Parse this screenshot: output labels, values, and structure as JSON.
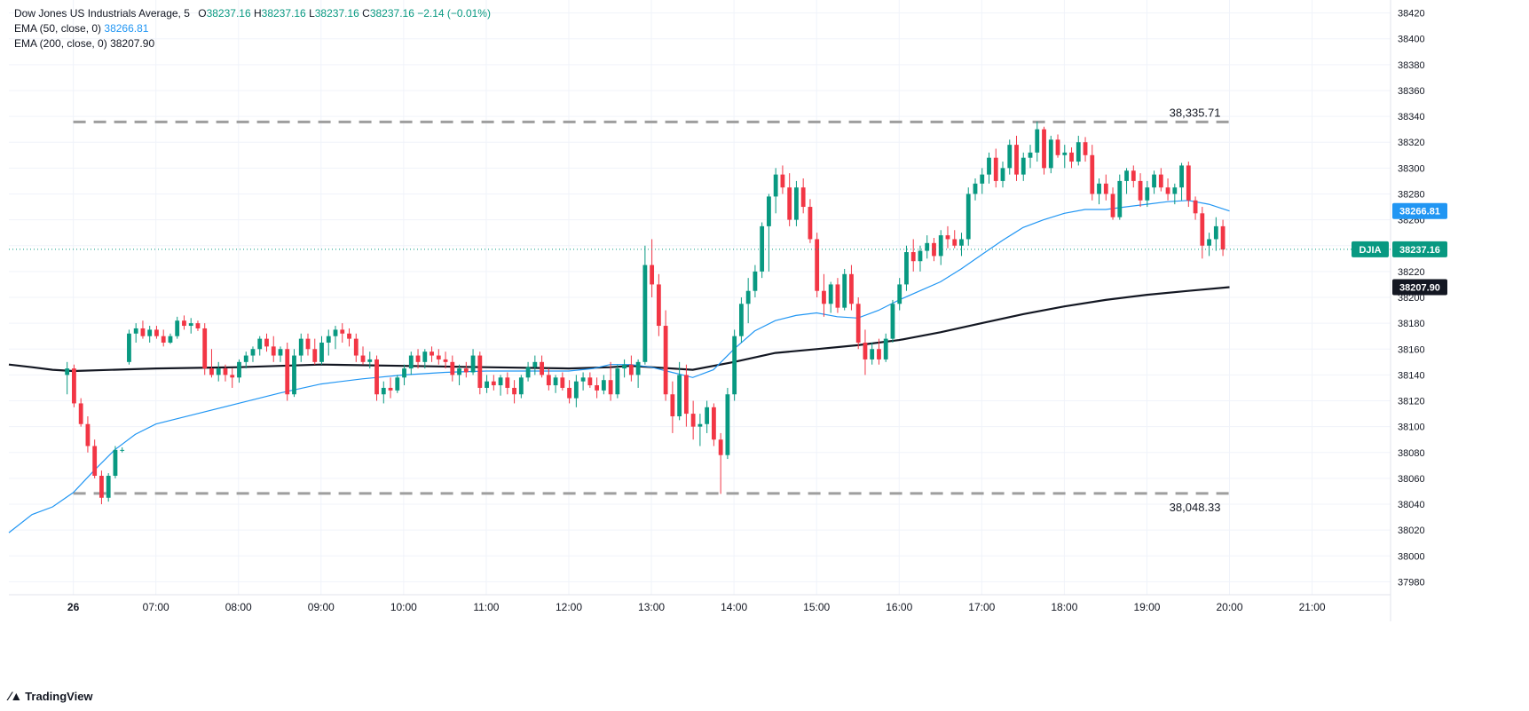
{
  "legend": {
    "symbol": "Dow Jones US Industrials Average, 5",
    "o_label": "O",
    "o_value": "38237.16",
    "h_label": "H",
    "h_value": "38237.16",
    "l_label": "L",
    "l_value": "38237.16",
    "c_label": "C",
    "c_value": "38237.16",
    "change": "−2.14 (−0.01%)",
    "ema50_label": "EMA (50, close, 0)",
    "ema50_value": "38266.81",
    "ema200_label": "EMA (200, close, 0)",
    "ema200_value": "38207.90"
  },
  "branding": {
    "text": "TradingView"
  },
  "colors": {
    "up": "#089981",
    "down": "#f23645",
    "ema50": "#2196f3",
    "ema200": "#131722",
    "dashed": "#9e9e9e"
  },
  "chart_data": {
    "type": "candlestick",
    "y_ticks": [
      37980,
      38000,
      38020,
      38040,
      38060,
      38080,
      38100,
      38120,
      38140,
      38160,
      38180,
      38200,
      38220,
      38240,
      38260,
      38280,
      38300,
      38320,
      38340,
      38360,
      38380,
      38400,
      38420
    ],
    "y_range": [
      37970,
      38430
    ],
    "x_ticks": [
      "26",
      "07:00",
      "08:00",
      "09:00",
      "10:00",
      "11:00",
      "12:00",
      "13:00",
      "14:00",
      "15:00",
      "16:00",
      "17:00",
      "18:00",
      "19:00",
      "20:00",
      "21:00"
    ],
    "x_tick_hours": [
      6.0,
      7,
      8,
      9,
      10,
      11,
      12,
      13,
      14,
      15,
      16,
      17,
      18,
      19,
      20,
      21
    ],
    "x_range_hours": [
      5.22,
      21.95
    ],
    "candle_width_hours": 0.0833,
    "last_candle_hour": 19.92,
    "candles_ohlc": [
      [
        38140,
        38150,
        38125,
        38145
      ],
      [
        38145,
        38148,
        38115,
        38118
      ],
      [
        38118,
        38122,
        38100,
        38102
      ],
      [
        38102,
        38108,
        38080,
        38085
      ],
      [
        38085,
        38090,
        38060,
        38062
      ],
      [
        38062,
        38066,
        38040,
        38045
      ],
      [
        38045,
        38064,
        38042,
        38062
      ],
      [
        38062,
        38085,
        38060,
        38082
      ],
      [
        38082,
        38084,
        38080,
        38082
      ],
      [
        38150,
        38175,
        38148,
        38172
      ],
      [
        38172,
        38180,
        38165,
        38176
      ],
      [
        38176,
        38182,
        38168,
        38170
      ],
      [
        38170,
        38178,
        38165,
        38175
      ],
      [
        38175,
        38178,
        38168,
        38170
      ],
      [
        38170,
        38175,
        38162,
        38165
      ],
      [
        38165,
        38172,
        38164,
        38170
      ],
      [
        38170,
        38185,
        38168,
        38182
      ],
      [
        38182,
        38186,
        38175,
        38178
      ],
      [
        38178,
        38184,
        38172,
        38180
      ],
      [
        38180,
        38182,
        38174,
        38176
      ],
      [
        38176,
        38180,
        38140,
        38145
      ],
      [
        38145,
        38160,
        38138,
        38140
      ],
      [
        38140,
        38150,
        38135,
        38145
      ],
      [
        38145,
        38148,
        38135,
        38140
      ],
      [
        38140,
        38145,
        38130,
        38138
      ],
      [
        38138,
        38152,
        38134,
        38150
      ],
      [
        38150,
        38158,
        38145,
        38155
      ],
      [
        38155,
        38162,
        38150,
        38160
      ],
      [
        38160,
        38170,
        38155,
        38168
      ],
      [
        38168,
        38172,
        38158,
        38162
      ],
      [
        38162,
        38170,
        38150,
        38155
      ],
      [
        38155,
        38162,
        38150,
        38160
      ],
      [
        38160,
        38165,
        38120,
        38125
      ],
      [
        38125,
        38160,
        38123,
        38155
      ],
      [
        38155,
        38172,
        38150,
        38168
      ],
      [
        38168,
        38172,
        38155,
        38160
      ],
      [
        38160,
        38168,
        38148,
        38150
      ],
      [
        38150,
        38170,
        38148,
        38165
      ],
      [
        38165,
        38175,
        38155,
        38170
      ],
      [
        38170,
        38178,
        38160,
        38175
      ],
      [
        38175,
        38180,
        38165,
        38172
      ],
      [
        38172,
        38176,
        38162,
        38168
      ],
      [
        38168,
        38172,
        38150,
        38155
      ],
      [
        38155,
        38162,
        38148,
        38150
      ],
      [
        38150,
        38158,
        38145,
        38152
      ],
      [
        38152,
        38155,
        38120,
        38125
      ],
      [
        38125,
        38135,
        38118,
        38130
      ],
      [
        38130,
        38138,
        38122,
        38128
      ],
      [
        38128,
        38140,
        38126,
        38138
      ],
      [
        38138,
        38148,
        38132,
        38145
      ],
      [
        38145,
        38158,
        38140,
        38155
      ],
      [
        38155,
        38160,
        38145,
        38150
      ],
      [
        38150,
        38160,
        38145,
        38158
      ],
      [
        38158,
        38162,
        38150,
        38155
      ],
      [
        38155,
        38160,
        38148,
        38152
      ],
      [
        38152,
        38158,
        38145,
        38150
      ],
      [
        38150,
        38155,
        38135,
        38140
      ],
      [
        38140,
        38148,
        38132,
        38145
      ],
      [
        38145,
        38150,
        38138,
        38142
      ],
      [
        38142,
        38160,
        38140,
        38155
      ],
      [
        38155,
        38158,
        38125,
        38130
      ],
      [
        38130,
        38140,
        38126,
        38135
      ],
      [
        38135,
        38140,
        38128,
        38132
      ],
      [
        38132,
        38140,
        38124,
        38138
      ],
      [
        38138,
        38142,
        38125,
        38130
      ],
      [
        38130,
        38136,
        38118,
        38125
      ],
      [
        38125,
        38140,
        38122,
        38138
      ],
      [
        38138,
        38150,
        38135,
        38146
      ],
      [
        38146,
        38155,
        38140,
        38150
      ],
      [
        38150,
        38155,
        38138,
        38140
      ],
      [
        38140,
        38145,
        38128,
        38132
      ],
      [
        38132,
        38140,
        38126,
        38138
      ],
      [
        38138,
        38142,
        38128,
        38130
      ],
      [
        38130,
        38136,
        38118,
        38122
      ],
      [
        38122,
        38140,
        38115,
        38135
      ],
      [
        38135,
        38142,
        38128,
        38138
      ],
      [
        38138,
        38142,
        38130,
        38132
      ],
      [
        38132,
        38138,
        38122,
        38128
      ],
      [
        38128,
        38140,
        38125,
        38136
      ],
      [
        38136,
        38150,
        38120,
        38125
      ],
      [
        38125,
        38148,
        38122,
        38145
      ],
      [
        38145,
        38152,
        38138,
        38148
      ],
      [
        38148,
        38155,
        38135,
        38140
      ],
      [
        38140,
        38152,
        38130,
        38150
      ],
      [
        38150,
        38240,
        38148,
        38225
      ],
      [
        38225,
        38245,
        38200,
        38210
      ],
      [
        38210,
        38218,
        38170,
        38178
      ],
      [
        38178,
        38190,
        38120,
        38125
      ],
      [
        38125,
        38135,
        38095,
        38108
      ],
      [
        38108,
        38150,
        38105,
        38140
      ],
      [
        38140,
        38148,
        38100,
        38110
      ],
      [
        38110,
        38120,
        38090,
        38100
      ],
      [
        38100,
        38110,
        38085,
        38102
      ],
      [
        38102,
        38120,
        38095,
        38115
      ],
      [
        38115,
        38118,
        38085,
        38090
      ],
      [
        38090,
        38095,
        38048,
        38078
      ],
      [
        38078,
        38130,
        38075,
        38125
      ],
      [
        38125,
        38175,
        38120,
        38170
      ],
      [
        38170,
        38200,
        38165,
        38195
      ],
      [
        38195,
        38215,
        38180,
        38205
      ],
      [
        38205,
        38225,
        38200,
        38220
      ],
      [
        38220,
        38258,
        38215,
        38255
      ],
      [
        38255,
        38280,
        38220,
        38278
      ],
      [
        38278,
        38300,
        38265,
        38295
      ],
      [
        38295,
        38302,
        38280,
        38285
      ],
      [
        38285,
        38296,
        38255,
        38260
      ],
      [
        38260,
        38290,
        38255,
        38285
      ],
      [
        38285,
        38292,
        38265,
        38270
      ],
      [
        38270,
        38276,
        38242,
        38245
      ],
      [
        38245,
        38250,
        38200,
        38205
      ],
      [
        38205,
        38218,
        38185,
        38195
      ],
      [
        38195,
        38212,
        38188,
        38210
      ],
      [
        38210,
        38215,
        38188,
        38192
      ],
      [
        38192,
        38222,
        38190,
        38218
      ],
      [
        38218,
        38225,
        38190,
        38195
      ],
      [
        38195,
        38200,
        38160,
        38165
      ],
      [
        38165,
        38175,
        38140,
        38152
      ],
      [
        38152,
        38165,
        38148,
        38160
      ],
      [
        38160,
        38168,
        38148,
        38152
      ],
      [
        38152,
        38172,
        38150,
        38168
      ],
      [
        38168,
        38198,
        38165,
        38195
      ],
      [
        38195,
        38215,
        38190,
        38210
      ],
      [
        38210,
        38240,
        38205,
        38235
      ],
      [
        38235,
        38245,
        38220,
        38228
      ],
      [
        38228,
        38240,
        38220,
        38236
      ],
      [
        38236,
        38248,
        38230,
        38242
      ],
      [
        38242,
        38246,
        38228,
        38232
      ],
      [
        38232,
        38252,
        38225,
        38248
      ],
      [
        38248,
        38255,
        38238,
        38245
      ],
      [
        38245,
        38252,
        38238,
        38240
      ],
      [
        38240,
        38250,
        38232,
        38245
      ],
      [
        38245,
        38285,
        38240,
        38280
      ],
      [
        38280,
        38292,
        38275,
        38288
      ],
      [
        38288,
        38300,
        38280,
        38295
      ],
      [
        38295,
        38312,
        38288,
        38308
      ],
      [
        38308,
        38315,
        38285,
        38290
      ],
      [
        38290,
        38305,
        38285,
        38300
      ],
      [
        38300,
        38322,
        38295,
        38318
      ],
      [
        38318,
        38325,
        38290,
        38295
      ],
      [
        38295,
        38312,
        38290,
        38308
      ],
      [
        38308,
        38318,
        38300,
        38312
      ],
      [
        38312,
        38336,
        38305,
        38330
      ],
      [
        38330,
        38332,
        38295,
        38300
      ],
      [
        38300,
        38325,
        38296,
        38322
      ],
      [
        38322,
        38326,
        38308,
        38310
      ],
      [
        38310,
        38318,
        38300,
        38312
      ],
      [
        38312,
        38316,
        38300,
        38305
      ],
      [
        38305,
        38325,
        38302,
        38320
      ],
      [
        38320,
        38324,
        38305,
        38310
      ],
      [
        38310,
        38318,
        38275,
        38280
      ],
      [
        38280,
        38292,
        38272,
        38288
      ],
      [
        38288,
        38295,
        38275,
        38280
      ],
      [
        38280,
        38285,
        38260,
        38262
      ],
      [
        38262,
        38295,
        38260,
        38290
      ],
      [
        38290,
        38300,
        38280,
        38298
      ],
      [
        38298,
        38302,
        38285,
        38290
      ],
      [
        38290,
        38296,
        38270,
        38275
      ],
      [
        38275,
        38290,
        38270,
        38285
      ],
      [
        38285,
        38298,
        38280,
        38295
      ],
      [
        38295,
        38300,
        38282,
        38285
      ],
      [
        38285,
        38292,
        38275,
        38280
      ],
      [
        38280,
        38288,
        38272,
        38285
      ],
      [
        38285,
        38304,
        38275,
        38302
      ],
      [
        38302,
        38305,
        38270,
        38275
      ],
      [
        38275,
        38278,
        38260,
        38265
      ],
      [
        38265,
        38270,
        38230,
        38240
      ],
      [
        38240,
        38250,
        38232,
        38245
      ],
      [
        38245,
        38262,
        38236,
        38255
      ],
      [
        38255,
        38260,
        38232,
        38237
      ]
    ],
    "ema50": [
      [
        5.22,
        38018
      ],
      [
        5.5,
        38032
      ],
      [
        5.75,
        38038
      ],
      [
        6.0,
        38049
      ],
      [
        6.25,
        38066
      ],
      [
        6.5,
        38082
      ],
      [
        6.75,
        38094
      ],
      [
        7.0,
        38102
      ],
      [
        7.5,
        38110
      ],
      [
        8.0,
        38118
      ],
      [
        8.5,
        38126
      ],
      [
        9.0,
        38133
      ],
      [
        9.5,
        38137
      ],
      [
        10.0,
        38140
      ],
      [
        10.5,
        38142
      ],
      [
        11.0,
        38143
      ],
      [
        11.5,
        38143
      ],
      [
        12.0,
        38143
      ],
      [
        12.3,
        38145
      ],
      [
        12.5,
        38148
      ],
      [
        12.75,
        38148
      ],
      [
        13.0,
        38146
      ],
      [
        13.25,
        38142
      ],
      [
        13.5,
        38138
      ],
      [
        13.75,
        38144
      ],
      [
        14.0,
        38160
      ],
      [
        14.25,
        38174
      ],
      [
        14.5,
        38182
      ],
      [
        14.75,
        38186
      ],
      [
        15.0,
        38188
      ],
      [
        15.25,
        38185
      ],
      [
        15.5,
        38184
      ],
      [
        15.75,
        38190
      ],
      [
        16.0,
        38198
      ],
      [
        16.25,
        38205
      ],
      [
        16.5,
        38212
      ],
      [
        16.75,
        38222
      ],
      [
        17.0,
        38233
      ],
      [
        17.25,
        38244
      ],
      [
        17.5,
        38254
      ],
      [
        17.75,
        38260
      ],
      [
        18.0,
        38265
      ],
      [
        18.25,
        38268
      ],
      [
        18.5,
        38268
      ],
      [
        18.75,
        38270
      ],
      [
        19.0,
        38272
      ],
      [
        19.25,
        38274
      ],
      [
        19.5,
        38275
      ],
      [
        19.75,
        38272
      ],
      [
        20.0,
        38266.81
      ]
    ],
    "ema200": [
      [
        5.22,
        38148
      ],
      [
        5.5,
        38146
      ],
      [
        5.75,
        38144
      ],
      [
        6.0,
        38143
      ],
      [
        7.0,
        38145
      ],
      [
        8.0,
        38146
      ],
      [
        9.0,
        38148
      ],
      [
        10.0,
        38147
      ],
      [
        11.0,
        38146
      ],
      [
        12.0,
        38145
      ],
      [
        12.5,
        38146
      ],
      [
        12.75,
        38147
      ],
      [
        13.0,
        38146
      ],
      [
        13.5,
        38144
      ],
      [
        14.0,
        38150
      ],
      [
        14.5,
        38157
      ],
      [
        15.0,
        38160
      ],
      [
        15.5,
        38163
      ],
      [
        16.0,
        38167
      ],
      [
        16.5,
        38173
      ],
      [
        17.0,
        38180
      ],
      [
        17.5,
        38187
      ],
      [
        18.0,
        38193
      ],
      [
        18.5,
        38198
      ],
      [
        19.0,
        38202
      ],
      [
        19.5,
        38205
      ],
      [
        20.0,
        38207.9
      ]
    ],
    "resistance": {
      "value": 38335.71,
      "label": "38,335.71",
      "from_hour": 6.0,
      "to_hour": 20.0
    },
    "support": {
      "value": 38048.33,
      "label": "38,048.33",
      "from_hour": 6.0,
      "to_hour": 20.0
    },
    "price_tags": [
      {
        "text": "38266.81",
        "value": 38266.81,
        "bg": "#2196f3",
        "color": "#ffffff"
      },
      {
        "text": "38207.90",
        "value": 38207.9,
        "bg": "#131722",
        "color": "#ffffff"
      },
      {
        "text": "38237.16",
        "value": 38237.16,
        "bg": "#089981",
        "color": "#ffffff",
        "tag": "DJIA"
      }
    ],
    "current_price": 38237.16
  }
}
